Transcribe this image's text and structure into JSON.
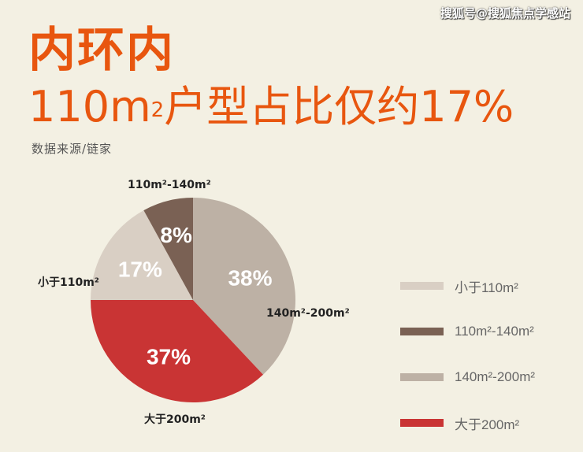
{
  "watermark": "搜狐号@搜狐焦点学感站",
  "title_line1": "内环内",
  "title_line2_prefix": "110m",
  "title_line2_sup": "2",
  "title_line2_suffix": "户型占比仅约17%",
  "source": "数据来源/链家",
  "chart_data": {
    "type": "pie",
    "start": "top",
    "direction": "clockwise",
    "slices": [
      {
        "name": "140m²-200m²",
        "value": 38,
        "label": "38%",
        "color": "#bdb1a5"
      },
      {
        "name": "大于200m²",
        "value": 37,
        "label": "37%",
        "color": "#c93434"
      },
      {
        "name": "小于110m²",
        "value": 17,
        "label": "17%",
        "color": "#d9cfc4"
      },
      {
        "name": "110m²-140m²",
        "value": 8,
        "label": "8%",
        "color": "#7a6154"
      }
    ],
    "legend": {
      "placement": "right",
      "items": [
        {
          "label": "小于110m²",
          "color": "#d9cfc4"
        },
        {
          "label": "110m²-140m²",
          "color": "#7a6154"
        },
        {
          "label": "140m²-200m²",
          "color": "#bdb1a5"
        },
        {
          "label": "大于200m²",
          "color": "#c93434"
        }
      ]
    }
  }
}
